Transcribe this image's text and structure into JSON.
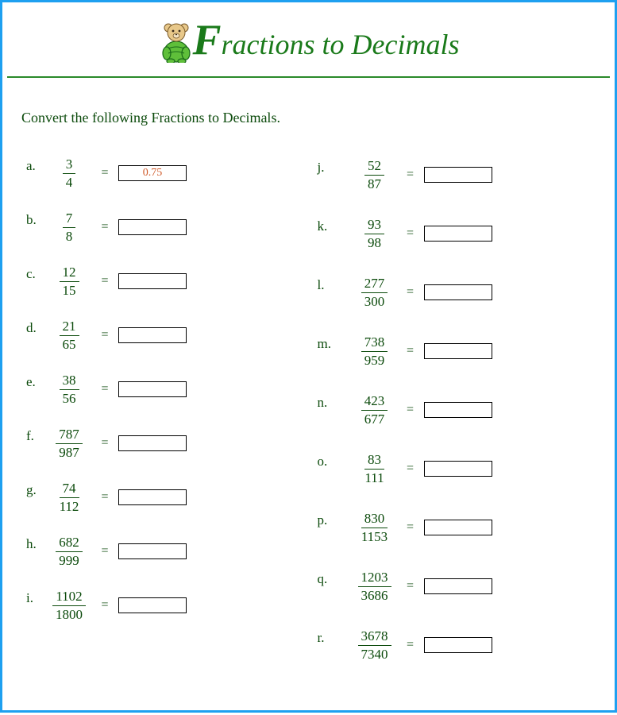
{
  "title": {
    "first_letter": "F",
    "rest": "ractions to Decimals",
    "color": "#1a7a1a"
  },
  "instructions": "Convert the following Fractions to Decimals.",
  "equals_symbol": "=",
  "colors": {
    "border": "#1ea0f0",
    "header_rule": "#2a8a2a",
    "text": "#0b4a0b",
    "answer_text": "#d05a2a",
    "background": "#ffffff"
  },
  "bear": {
    "body_fill": "#5fbf3a",
    "body_stroke": "#1a6a1a",
    "head_fill": "#e8c88a",
    "head_stroke": "#7a5a2a"
  },
  "left_column": [
    {
      "label": "a.",
      "numerator": "3",
      "denominator": "4",
      "answer": "0.75"
    },
    {
      "label": "b.",
      "numerator": "7",
      "denominator": "8",
      "answer": ""
    },
    {
      "label": "c.",
      "numerator": "12",
      "denominator": "15",
      "answer": ""
    },
    {
      "label": "d.",
      "numerator": "21",
      "denominator": "65",
      "answer": ""
    },
    {
      "label": "e.",
      "numerator": "38",
      "denominator": "56",
      "answer": ""
    },
    {
      "label": "f.",
      "numerator": "787",
      "denominator": "987",
      "answer": ""
    },
    {
      "label": "g.",
      "numerator": "74",
      "denominator": "112",
      "answer": ""
    },
    {
      "label": "h.",
      "numerator": "682",
      "denominator": "999",
      "answer": ""
    },
    {
      "label": "i.",
      "numerator": "1102",
      "denominator": "1800",
      "answer": ""
    }
  ],
  "right_column": [
    {
      "label": "j.",
      "numerator": "52",
      "denominator": "87",
      "answer": ""
    },
    {
      "label": "k.",
      "numerator": "93",
      "denominator": "98",
      "answer": ""
    },
    {
      "label": "l.",
      "numerator": "277",
      "denominator": "300",
      "answer": ""
    },
    {
      "label": "m.",
      "numerator": "738",
      "denominator": "959",
      "answer": ""
    },
    {
      "label": "n.",
      "numerator": "423",
      "denominator": "677",
      "answer": ""
    },
    {
      "label": "o.",
      "numerator": "83",
      "denominator": "111",
      "answer": ""
    },
    {
      "label": "p.",
      "numerator": "830",
      "denominator": "1153",
      "answer": ""
    },
    {
      "label": "q.",
      "numerator": "1203",
      "denominator": "3686",
      "answer": ""
    },
    {
      "label": "r.",
      "numerator": "3678",
      "denominator": "7340",
      "answer": ""
    }
  ]
}
